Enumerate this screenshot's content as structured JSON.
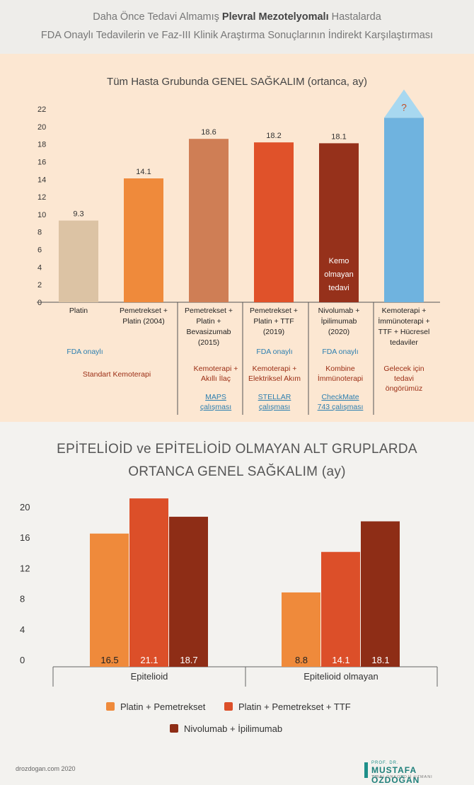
{
  "header": {
    "line1_pre": "Daha Önce Tedavi Almamış ",
    "line1_bold": "Plevral Mezotelyomalı",
    "line1_post": " Hastalarda",
    "line2": "FDA Onaylı Tedavilerin ve Faz-III Klinik Araştırma Sonuçlarının İndirekt Karşılaştırması"
  },
  "chart_data": [
    {
      "type": "bar",
      "title": "Tüm Hasta Grubunda GENEL SAĞKALIM (ortanca, ay)",
      "ylim": [
        0,
        22
      ],
      "yticks": [
        "0",
        "2",
        "4",
        "6",
        "8",
        "10",
        "12",
        "14",
        "16",
        "18",
        "20",
        "22"
      ],
      "categories": [
        [
          "Platin"
        ],
        [
          "Pemetrekset +",
          "Platin (2004)"
        ],
        [
          "Pemetrekset +",
          "Platin +",
          "Bevasizumab",
          "(2015)"
        ],
        [
          "Pemetrekset +",
          "Platin + TTF",
          "(2019)"
        ],
        [
          "Nivolumab +",
          "İpilimumab",
          "(2020)"
        ],
        [
          "Kemoterapi +",
          "İmmünoterapi +",
          "TTF + Hücresel",
          "tedaviler"
        ]
      ],
      "values": [
        9.3,
        14.1,
        18.6,
        18.2,
        18.1,
        null
      ],
      "value_labels": [
        "9.3",
        "14.1",
        "18.6",
        "18.2",
        "18.1",
        "?"
      ],
      "colors": [
        "#dcc3a4",
        "#ef8a3b",
        "#cf7e55",
        "#e0522a",
        "#96311b",
        "#6fb3df"
      ],
      "future_bar_value": 21,
      "inner_label": [
        "Kemo",
        "olmayan",
        "tedavi"
      ]
    },
    {
      "type": "bar",
      "title": "EPİTELİOİD ve EPİTELİOİD OLMAYAN ALT GRUPLARDA ORTANCA GENEL SAĞKALIM (ay)",
      "ylim": [
        0,
        22
      ],
      "yticks": [
        "0",
        "4",
        "8",
        "12",
        "16",
        "20"
      ],
      "categories": [
        "Epitelioid",
        "Epitelioid olmayan"
      ],
      "series": [
        {
          "name": "Platin + Pemetrekset",
          "values": [
            16.5,
            8.8
          ],
          "labels": [
            "16.5",
            "8.8"
          ],
          "color": "#ef8a3b"
        },
        {
          "name": "Platin + Pemetrekset + TTF",
          "values": [
            21.1,
            14.1
          ],
          "labels": [
            "21.1",
            "14.1"
          ],
          "color": "#dc4f29"
        },
        {
          "name": "Nivolumab + İpilimumab",
          "values": [
            18.7,
            18.1
          ],
          "labels": [
            "18.7",
            "18.1"
          ],
          "color": "#8e2d16"
        }
      ]
    }
  ],
  "chart1_notes": {
    "fda1": "FDA onaylı",
    "std": "Standart Kemoterapi",
    "col3": [
      "Kemoterapi +",
      "Akıllı İlaç"
    ],
    "col3_link": [
      "MAPS",
      "çalışması"
    ],
    "fda4": "FDA onaylı",
    "col4": [
      "Kemoterapi +",
      "Elektriksel Akım"
    ],
    "col4_link": [
      "STELLAR",
      "çalışması"
    ],
    "fda5": "FDA onaylı",
    "col5": [
      "Kombine",
      "İmmünoterapi"
    ],
    "col5_link": [
      "CheckMate",
      "743 çalışması"
    ],
    "col6": [
      "Gelecek için",
      "tedavi",
      "öngörümüz"
    ]
  },
  "chart2_title_line1": "EPİTELİOİD ve EPİTELİOİD OLMAYAN ALT GRUPLARDA",
  "chart2_title_line2": "ORTANCA GENEL SAĞKALIM (ay)",
  "footer": {
    "site": "drozdogan.com 2020",
    "logo_top": "PROF. DR.",
    "logo_name": "MUSTAFA ÖZDOĞAN",
    "logo_sub": "TIBBİ ONKOLOJİ UZMANI"
  }
}
